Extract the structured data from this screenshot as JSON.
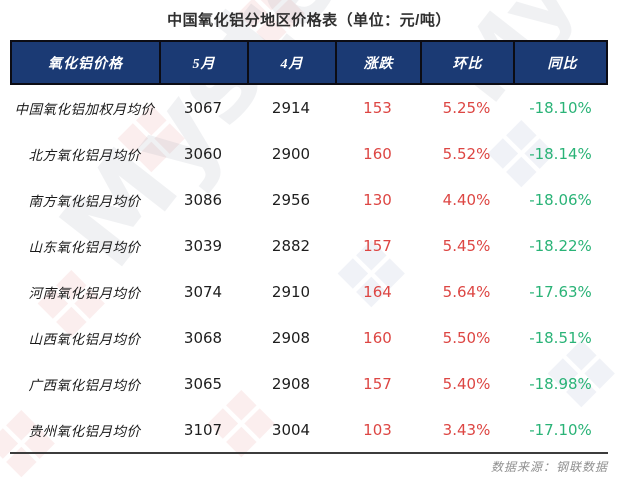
{
  "title": "中国氧化铝分地区价格表（单位：元/吨）",
  "watermark": {
    "text": "Mysteel",
    "logo_icon": "mysteel-diamond-logo"
  },
  "colors": {
    "header_bg": "#1b3a74",
    "up_red": "#dd4643",
    "down_green": "#2ab377"
  },
  "table": {
    "headers": [
      "氧化铝价格",
      "5月",
      "4月",
      "涨跌",
      "环比",
      "同比"
    ],
    "rows": [
      {
        "label": "中国氧化铝加权月均价",
        "may": "3067",
        "apr": "2914",
        "change": "153",
        "mom": "5.25%",
        "yoy": "-18.10%"
      },
      {
        "label": "北方氧化铝月均价",
        "may": "3060",
        "apr": "2900",
        "change": "160",
        "mom": "5.52%",
        "yoy": "-18.14%"
      },
      {
        "label": "南方氧化铝月均价",
        "may": "3086",
        "apr": "2956",
        "change": "130",
        "mom": "4.40%",
        "yoy": "-18.06%"
      },
      {
        "label": "山东氧化铝月均价",
        "may": "3039",
        "apr": "2882",
        "change": "157",
        "mom": "5.45%",
        "yoy": "-18.22%"
      },
      {
        "label": "河南氧化铝月均价",
        "may": "3074",
        "apr": "2910",
        "change": "164",
        "mom": "5.64%",
        "yoy": "-17.63%"
      },
      {
        "label": "山西氧化铝月均价",
        "may": "3068",
        "apr": "2908",
        "change": "160",
        "mom": "5.50%",
        "yoy": "-18.51%"
      },
      {
        "label": "广西氧化铝月均价",
        "may": "3065",
        "apr": "2908",
        "change": "157",
        "mom": "5.40%",
        "yoy": "-18.98%"
      },
      {
        "label": "贵州氧化铝月均价",
        "may": "3107",
        "apr": "3004",
        "change": "103",
        "mom": "3.43%",
        "yoy": "-17.10%"
      }
    ]
  },
  "footer": {
    "source": "数据来源：钢联数据"
  }
}
